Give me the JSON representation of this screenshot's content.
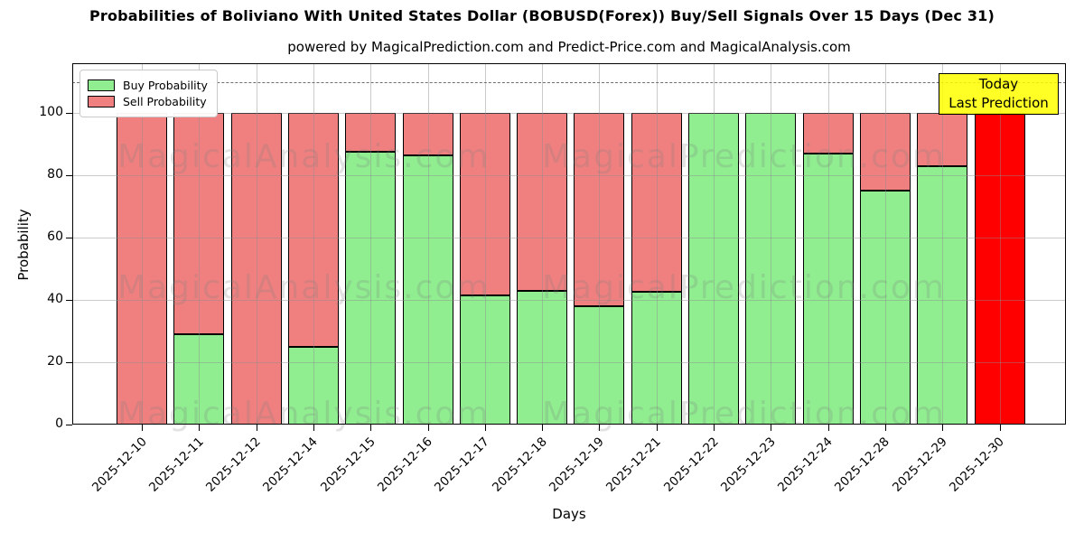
{
  "title": "Probabilities of Boliviano With United States Dollar (BOBUSD(Forex)) Buy/Sell Signals Over 15 Days (Dec 31)",
  "subtitle": "powered by MagicalPrediction.com and Predict-Price.com and MagicalAnalysis.com",
  "axes": {
    "ylabel": "Probability",
    "xlabel": "Days",
    "ytick_labels": [
      "0",
      "20",
      "40",
      "60",
      "80",
      "100"
    ],
    "ytick_values": [
      0,
      20,
      40,
      60,
      80,
      100
    ]
  },
  "legend": {
    "items": [
      {
        "label": "Buy Probability",
        "color": "#90ee90"
      },
      {
        "label": "Sell Probability",
        "color": "#f08080"
      }
    ]
  },
  "annotation": {
    "line1": "Today",
    "line2": "Last Prediction",
    "bg_color": "#ffff00"
  },
  "watermarks": {
    "texts": [
      "MagicalAnalysis.com",
      "MagicalPrediction.com"
    ],
    "color": "#7d7d7d"
  },
  "chart_data": {
    "type": "bar",
    "stacked": true,
    "title": "Probabilities of Boliviano With United States Dollar (BOBUSD(Forex)) Buy/Sell Signals Over 15 Days (Dec 31)",
    "xlabel": "Days",
    "ylabel": "Probability",
    "ylim": [
      0,
      116
    ],
    "grid": true,
    "legend_position": "upper-left",
    "dashed_threshold_y": 110,
    "categories": [
      "2025-12-10",
      "2025-12-11",
      "2025-12-12",
      "2025-12-14",
      "2025-12-15",
      "2025-12-16",
      "2025-12-17",
      "2025-12-18",
      "2025-12-19",
      "2025-12-21",
      "2025-12-22",
      "2025-12-23",
      "2025-12-24",
      "2025-12-28",
      "2025-12-29",
      "2025-12-30"
    ],
    "series": [
      {
        "name": "Buy Probability",
        "color": "#90ee90",
        "values": [
          0,
          29,
          0,
          25,
          87.5,
          86.5,
          41.5,
          43,
          38,
          42.5,
          100,
          100,
          87,
          75,
          83,
          0
        ]
      },
      {
        "name": "Sell Probability",
        "color": "#f08080",
        "values": [
          100,
          71,
          100,
          75,
          12.5,
          13.5,
          58.5,
          57,
          62,
          57.5,
          0,
          0,
          13,
          25,
          17,
          100
        ]
      }
    ],
    "highlight_bar": {
      "index": 15,
      "color": "#ff0000",
      "note": "Today / Last Prediction"
    }
  }
}
